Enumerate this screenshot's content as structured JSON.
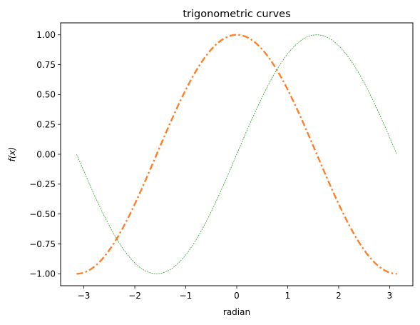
{
  "chart_data": {
    "type": "line",
    "title": "trigonometric curves",
    "xlabel": "radian",
    "ylabel": "f(x)",
    "xlim": [
      -3.4558,
      3.4558
    ],
    "ylim": [
      -1.1,
      1.1
    ],
    "x_ticks": [
      -3,
      -2,
      -1,
      0,
      1,
      2,
      3
    ],
    "x_tick_labels": [
      "−3",
      "−2",
      "−1",
      "0",
      "1",
      "2",
      "3"
    ],
    "y_ticks": [
      -1.0,
      -0.75,
      -0.5,
      -0.25,
      0.0,
      0.25,
      0.5,
      0.75,
      1.0
    ],
    "y_tick_labels": [
      "−1.00",
      "−0.75",
      "−0.50",
      "−0.25",
      "0.00",
      "0.25",
      "0.50",
      "0.75",
      "1.00"
    ],
    "grid": false,
    "legend": "none",
    "series": [
      {
        "function": "cos",
        "color": "#ff7f2a",
        "style": "dash-dot",
        "x": [
          -3.1416,
          -2.7489,
          -2.3562,
          -1.9635,
          -1.5708,
          -1.1781,
          -0.7854,
          -0.3927,
          0.0,
          0.3927,
          0.7854,
          1.1781,
          1.5708,
          1.9635,
          2.3562,
          2.7489,
          3.1416
        ],
        "values": [
          -1.0,
          -0.9239,
          -0.7071,
          -0.3827,
          0.0,
          0.3827,
          0.7071,
          0.9239,
          1.0,
          0.9239,
          0.7071,
          0.3827,
          0.0,
          -0.3827,
          -0.7071,
          -0.9239,
          -1.0
        ]
      },
      {
        "function": "sin",
        "color": "#2ca02c",
        "style": "dotted",
        "x": [
          -3.1416,
          -2.7489,
          -2.3562,
          -1.9635,
          -1.5708,
          -1.1781,
          -0.7854,
          -0.3927,
          0.0,
          0.3927,
          0.7854,
          1.1781,
          1.5708,
          1.9635,
          2.3562,
          2.7489,
          3.1416
        ],
        "values": [
          0.0,
          -0.3827,
          -0.7071,
          -0.9239,
          -1.0,
          -0.9239,
          -0.7071,
          -0.3827,
          0.0,
          0.3827,
          0.7071,
          0.9239,
          1.0,
          0.9239,
          0.7071,
          0.3827,
          0.0
        ]
      }
    ]
  }
}
